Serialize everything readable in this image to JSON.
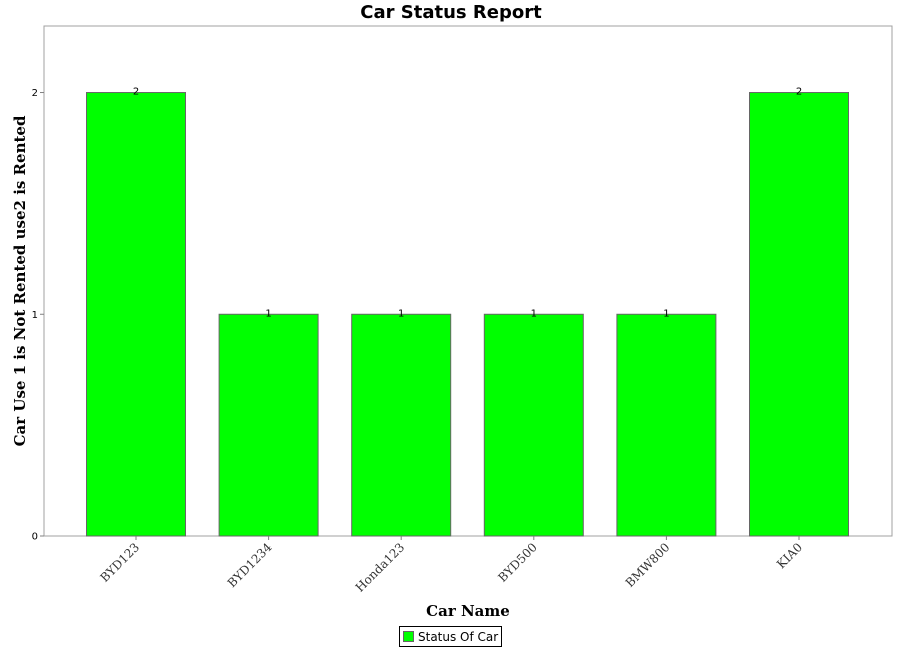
{
  "chart_data": {
    "type": "bar",
    "title": "Car Status Report",
    "xlabel": "Car Name",
    "ylabel": "Car Use 1 is Not Rented use2 is Rented",
    "categories": [
      "BYD123",
      "BYD1234",
      "Honda123",
      "BYD500",
      "BMW800",
      "KIA0"
    ],
    "series": [
      {
        "name": "Status Of Car",
        "values": [
          2,
          1,
          1,
          1,
          1,
          2
        ],
        "color": "#00ff00"
      }
    ],
    "ylim": [
      0,
      2.3
    ],
    "yticks": [
      0,
      1,
      2
    ],
    "grid": false,
    "legend_position": "bottom-center",
    "data_labels": true
  }
}
